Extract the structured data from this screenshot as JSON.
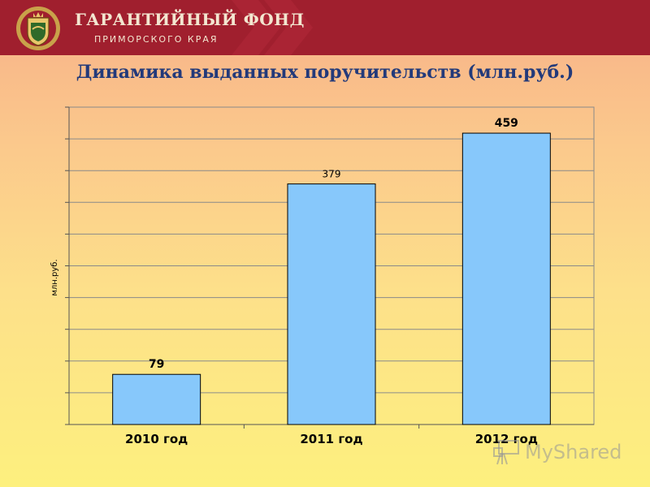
{
  "header": {
    "brand_title": "ГАРАНТИЙНЫЙ ФОНД",
    "brand_subtitle": "ПРИМОРСКОГО КРАЯ",
    "logo_icon": "coat-of-arms-icon"
  },
  "slide_title": "Динамика выданных поручительств (млн.руб.)",
  "watermark": {
    "text": "MyShared",
    "icon": "presentation-board-icon"
  },
  "colors": {
    "header_bg": "#a01f2e",
    "title": "#233a7a",
    "bar_fill": "#87c8fb",
    "bar_stroke": "#000000"
  },
  "chart_data": {
    "type": "bar",
    "categories": [
      "2010 год",
      "2011 год",
      "2012 год"
    ],
    "values": [
      79,
      379,
      459
    ],
    "value_labels": [
      "79",
      "379",
      "459"
    ],
    "title": "Динамика выданных поручительств (млн.руб.)",
    "xlabel": "",
    "ylabel": "млн.руб.",
    "ylim": [
      0,
      500
    ],
    "grid": true,
    "legend": "none"
  }
}
